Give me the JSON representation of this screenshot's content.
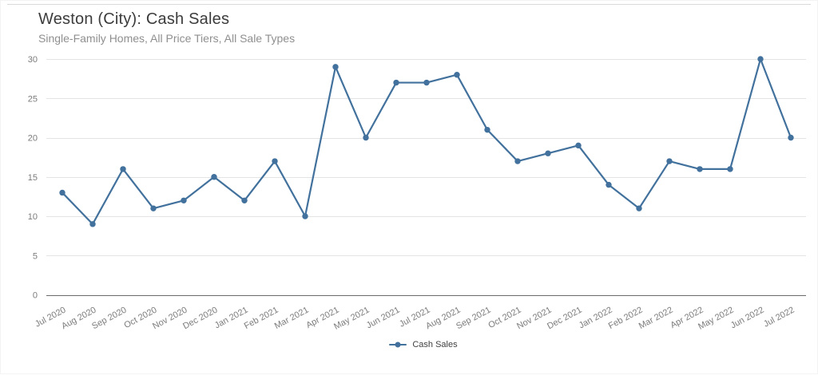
{
  "header": {
    "title": "Weston (City): Cash Sales",
    "subtitle": "Single-Family Homes, All Price Tiers, All Sale Types"
  },
  "legend": {
    "label": "Cash Sales"
  },
  "colors": {
    "line": "#41719C",
    "grid": "#e4e4e4",
    "axis": "#6b6b6b",
    "tick_text": "#7b7b7b",
    "title_text": "#3c3c3c",
    "subtitle_text": "#8f8f8f",
    "top_rule": "#dadada"
  },
  "chart_data": {
    "type": "line",
    "title": "Weston (City): Cash Sales",
    "subtitle": "Single-Family Homes, All Price Tiers, All Sale Types",
    "categories": [
      "Jul 2020",
      "Aug 2020",
      "Sep 2020",
      "Oct 2020",
      "Nov 2020",
      "Dec 2020",
      "Jan 2021",
      "Feb 2021",
      "Mar 2021",
      "Apr 2021",
      "May 2021",
      "Jun 2021",
      "Jul 2021",
      "Aug 2021",
      "Sep 2021",
      "Oct 2021",
      "Nov 2021",
      "Dec 2021",
      "Jan 2022",
      "Feb 2022",
      "Mar 2022",
      "Apr 2022",
      "May 2022",
      "Jun 2022",
      "Jul 2022"
    ],
    "series": [
      {
        "name": "Cash Sales",
        "values": [
          13,
          9,
          16,
          11,
          12,
          15,
          12,
          17,
          10,
          29,
          20,
          27,
          27,
          28,
          21,
          17,
          18,
          19,
          14,
          11,
          17,
          16,
          16,
          30,
          20
        ]
      }
    ],
    "xlabel": "",
    "ylabel": "",
    "ylim": [
      0,
      30
    ],
    "yticks": [
      0,
      5,
      10,
      15,
      20,
      25,
      30
    ],
    "grid": true,
    "legend_position": "bottom"
  }
}
